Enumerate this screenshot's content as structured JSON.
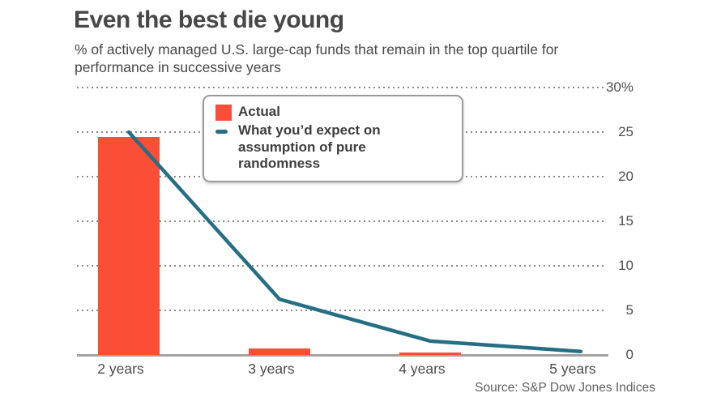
{
  "header": {
    "title": "Even the best die young",
    "subtitle": "% of actively managed U.S. large-cap funds that remain in the top quartile for performance in successive years"
  },
  "source": "Source: S&P Dow Jones Indices",
  "colors": {
    "bar": "#fb4e37",
    "line": "#256e84",
    "grid": "#8a8a8a",
    "axis": "#a3a3a3",
    "text": "#474747"
  },
  "chart_data": {
    "type": "bar",
    "title": "Even the best die young",
    "subtitle": "% of actively managed U.S. large-cap funds that remain in the top quartile for performance in successive years",
    "categories": [
      "2 years",
      "3 years",
      "4 years",
      "5 years"
    ],
    "series": [
      {
        "name": "Actual",
        "type": "bar",
        "color": "#fb4e37",
        "values": [
          24.5,
          0.7,
          0.3,
          0
        ]
      },
      {
        "name": "What you’d expect on assumption of pure randomness",
        "type": "line",
        "color": "#256e84",
        "values": [
          25,
          6.25,
          1.56,
          0.39
        ]
      }
    ],
    "xlabel": "",
    "ylabel": "",
    "ylim": [
      0,
      30
    ],
    "yticks": [
      0,
      5,
      10,
      15,
      20,
      25,
      30
    ],
    "ytick_labels": [
      "0",
      "5",
      "10",
      "15",
      "20",
      "25",
      "30%"
    ],
    "grid": "horizontal-dotted",
    "legend_position": "inset-top-center",
    "source": "Source: S&P Dow Jones Indices"
  }
}
